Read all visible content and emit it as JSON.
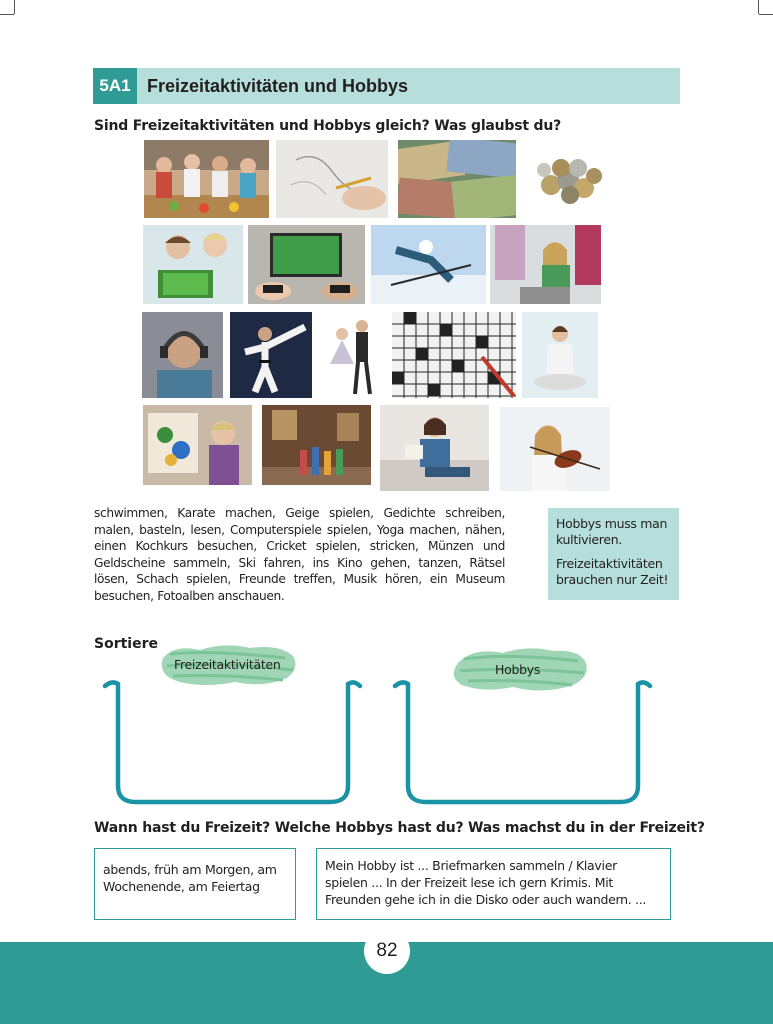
{
  "header": {
    "number": "5A1",
    "title": "Freizeitaktivitäten und Hobbys"
  },
  "question1": "Sind Freizeitaktivitäten und Hobbys gleich? Was glaubst du?",
  "photos": [
    "cooking-class-photo",
    "drawing-hand-photo",
    "banknotes-photo",
    "coins-photo",
    "gardening-tablet-photo",
    "video-game-photo",
    "skiing-photo",
    "sewing-photo",
    "music-headphones-photo",
    "karate-photo",
    "dancing-couple-photo",
    "crossword-photo",
    "yoga-photo",
    "painting-photo",
    "museum-visit-photo",
    "reading-photo",
    "violin-photo"
  ],
  "wordlist": "schwimmen, Karate machen, Geige spielen, Gedichte schreiben, malen, basteln, lesen, Computerspiele spielen, Yoga machen, nähen, einen Kochkurs besuchen, Cricket spielen, stricken, Münzen und Geldscheine sammeln, Ski fahren, ins Kino gehen, tanzen, Rätsel lösen, Schach spielen, Freunde treffen, Musik hören, ein Museum besuchen, Fotoalben anschauen.",
  "sidebox": {
    "line1": "Hobbys muss man kultivieren.",
    "line2": "Freizeitaktivitäten brauchen nur Zeit!"
  },
  "sort": {
    "instruction": "Sortiere",
    "left_label": "Freizeitaktivitäten",
    "right_label": "Hobbys"
  },
  "question2": "Wann hast du Freizeit? Welche Hobbys hast du? Was machst du in der Freizeit?",
  "answer_left": "abends, früh am Morgen, am Wochenende, am Feiertag",
  "answer_right": "Mein Hobby ist ... Briefmarken sammeln / Klavier spielen ... In der Freizeit lese ich gern Krimis. Mit Freunden gehe ich in die Disko oder auch wandern. ...",
  "page_number": "82",
  "colors": {
    "teal": "#2f9b95",
    "light_teal": "#b6dfdc",
    "brush_green": "#8fcfa8"
  }
}
